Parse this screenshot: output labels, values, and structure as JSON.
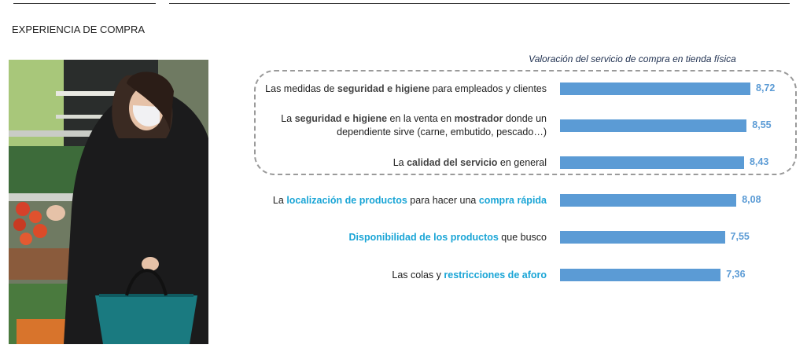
{
  "header": {
    "section_title": "EXPERIENCIA DE COMPRA"
  },
  "photo": {
    "description_icon": "woman-with-mask-shopping-produce-image"
  },
  "colors": {
    "bar": "#5b9bd5",
    "value_label": "#5b9bd5",
    "highlight": "#1aa5d6"
  },
  "chart_data": {
    "type": "bar",
    "orientation": "horizontal",
    "title": "Valoración del servicio de compra en tienda física",
    "categories": [
      "Las medidas de seguridad e higiene para empleados y clientes",
      "La seguridad e higiene en la venta en mostrador donde un dependiente sirve (carne, embutido, pescado…)",
      "La calidad del servicio en general",
      "La localización de productos para hacer una compra rápida",
      "Disponibilidad de los productos que busco",
      "Las colas y restricciones de aforo"
    ],
    "values": [
      8.72,
      8.55,
      8.43,
      8.08,
      7.55,
      7.36
    ],
    "value_labels": [
      "8,72",
      "8,55",
      "8,43",
      "8,08",
      "7,55",
      "7,36"
    ],
    "grouped_rows": [
      0,
      1,
      2
    ],
    "grid": false,
    "legend": "none"
  },
  "rows": [
    {
      "segments": [
        {
          "t": "Las medidas de ",
          "s": ""
        },
        {
          "t": "seguridad e higiene",
          "s": "bg"
        },
        {
          "t": " para empleados y clientes",
          "s": ""
        }
      ]
    },
    {
      "segments": [
        {
          "t": "La ",
          "s": ""
        },
        {
          "t": "seguridad e higiene",
          "s": "bg"
        },
        {
          "t": " en la venta en ",
          "s": ""
        },
        {
          "t": "mostrador",
          "s": "bg"
        },
        {
          "t": " donde un dependiente sirve (carne, embutido, pescado…)",
          "s": ""
        }
      ]
    },
    {
      "segments": [
        {
          "t": "La ",
          "s": ""
        },
        {
          "t": "calidad del servicio",
          "s": "bg"
        },
        {
          "t": " en general",
          "s": ""
        }
      ]
    },
    {
      "segments": [
        {
          "t": "La ",
          "s": ""
        },
        {
          "t": "localización de productos",
          "s": "bb"
        },
        {
          "t": " para hacer una ",
          "s": ""
        },
        {
          "t": "compra rápida",
          "s": "bb"
        }
      ]
    },
    {
      "segments": [
        {
          "t": "Disponibilidad de los productos",
          "s": "bb"
        },
        {
          "t": " que busco",
          "s": ""
        }
      ]
    },
    {
      "segments": [
        {
          "t": "Las colas y ",
          "s": ""
        },
        {
          "t": "restricciones de aforo",
          "s": "bb"
        }
      ]
    }
  ]
}
